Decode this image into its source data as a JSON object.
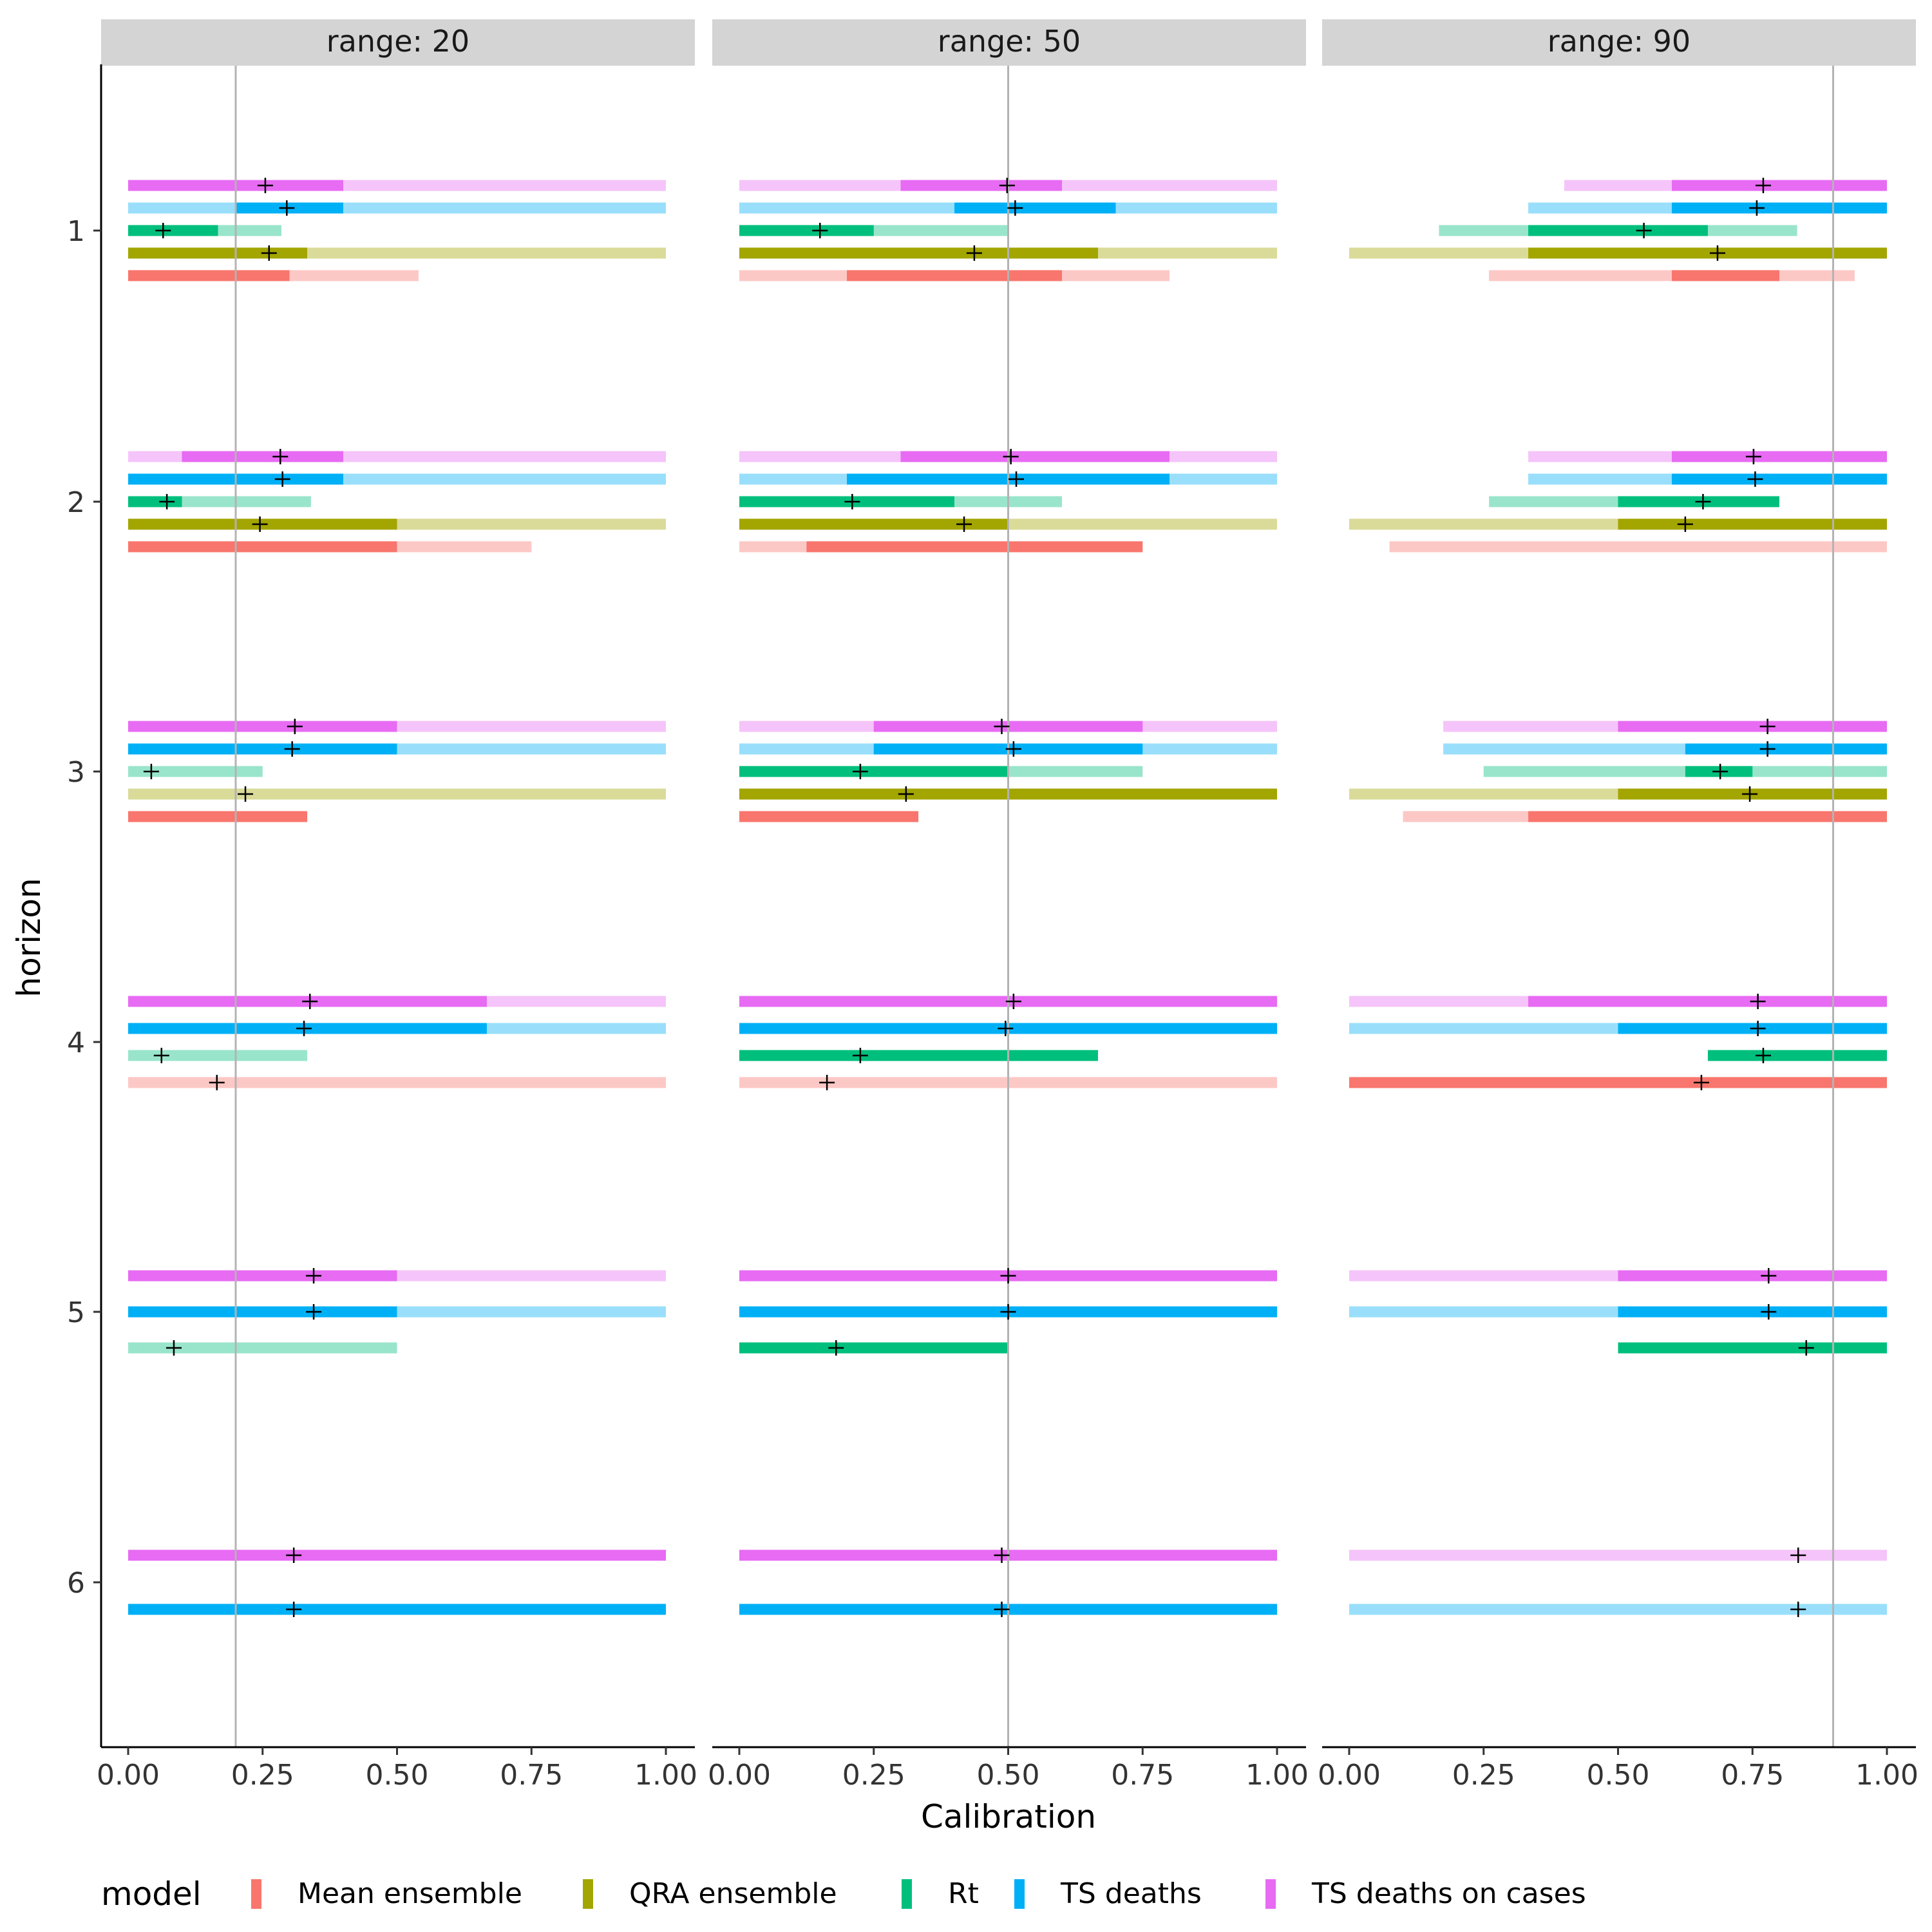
{
  "chart_data": {
    "type": "interval",
    "xlabel": "Calibration",
    "ylabel": "horizon",
    "xlim": [
      0,
      1
    ],
    "x_ticks": [
      "0.00",
      "0.25",
      "0.50",
      "0.75",
      "1.00"
    ],
    "y_ticks": [
      "1",
      "2",
      "3",
      "4",
      "5",
      "6"
    ],
    "grid": false,
    "legend": {
      "title": "model",
      "position": "bottom",
      "entries": [
        "Mean ensemble",
        "QRA ensemble",
        "Rt",
        "TS deaths",
        "TS deaths on cases"
      ]
    },
    "model_colors": {
      "Mean ensemble": "#F8766D",
      "QRA ensemble": "#A3A500",
      "Rt": "#00BF7D",
      "TS deaths": "#00B0F6",
      "TS deaths on cases": "#E76BF3"
    },
    "panels": [
      {
        "label": "range: 20",
        "target": 0.2,
        "rows": [
          {
            "horizon": 1,
            "model": "TS deaths on cases",
            "outer": [
              0,
              1
            ],
            "inner": [
              0,
              0.4
            ],
            "point": 0.255
          },
          {
            "horizon": 1,
            "model": "TS deaths",
            "outer": [
              0,
              1
            ],
            "inner": [
              0.2,
              0.4
            ],
            "point": 0.295
          },
          {
            "horizon": 1,
            "model": "Rt",
            "outer": [
              0,
              0.285
            ],
            "inner": [
              0,
              0.167
            ],
            "point": 0.065
          },
          {
            "horizon": 1,
            "model": "QRA ensemble",
            "outer": [
              0,
              1
            ],
            "inner": [
              0,
              0.333
            ],
            "point": 0.262
          },
          {
            "horizon": 1,
            "model": "Mean ensemble",
            "outer": [
              0,
              0.54
            ],
            "inner": [
              0,
              0.3
            ],
            "point": null
          },
          {
            "horizon": 2,
            "model": "TS deaths on cases",
            "outer": [
              0,
              1
            ],
            "inner": [
              0.1,
              0.4
            ],
            "point": 0.283
          },
          {
            "horizon": 2,
            "model": "TS deaths",
            "outer": [
              0,
              1
            ],
            "inner": [
              0,
              0.4
            ],
            "point": 0.287
          },
          {
            "horizon": 2,
            "model": "Rt",
            "outer": [
              0,
              0.34
            ],
            "inner": [
              0,
              0.1
            ],
            "point": 0.072
          },
          {
            "horizon": 2,
            "model": "QRA ensemble",
            "outer": [
              0,
              1
            ],
            "inner": [
              0,
              0.5
            ],
            "point": 0.245
          },
          {
            "horizon": 2,
            "model": "Mean ensemble",
            "outer": [
              0,
              0.75
            ],
            "inner": [
              0,
              0.5
            ],
            "point": null
          },
          {
            "horizon": 3,
            "model": "TS deaths on cases",
            "outer": [
              0,
              1
            ],
            "inner": [
              0,
              0.5
            ],
            "point": 0.31
          },
          {
            "horizon": 3,
            "model": "TS deaths",
            "outer": [
              0,
              1
            ],
            "inner": [
              0,
              0.5
            ],
            "point": 0.305
          },
          {
            "horizon": 3,
            "model": "Rt",
            "outer": [
              0,
              0.25
            ],
            "inner": null,
            "point": 0.043
          },
          {
            "horizon": 3,
            "model": "QRA ensemble",
            "outer": [
              0,
              1
            ],
            "inner": null,
            "point": 0.218
          },
          {
            "horizon": 3,
            "model": "Mean ensemble",
            "outer": [
              0,
              0.333
            ],
            "inner": [
              0,
              0.333
            ],
            "point": null
          },
          {
            "horizon": 4,
            "model": "TS deaths on cases",
            "outer": [
              0,
              1
            ],
            "inner": [
              0,
              0.667
            ],
            "point": 0.338
          },
          {
            "horizon": 4,
            "model": "TS deaths",
            "outer": [
              0,
              1
            ],
            "inner": [
              0,
              0.667
            ],
            "point": 0.327
          },
          {
            "horizon": 4,
            "model": "Rt",
            "outer": [
              0,
              0.333
            ],
            "inner": null,
            "point": 0.062
          },
          {
            "horizon": 4,
            "model": "Mean ensemble",
            "outer": [
              0,
              1
            ],
            "inner": null,
            "point": 0.165
          },
          {
            "horizon": 5,
            "model": "TS deaths on cases",
            "outer": [
              0,
              1
            ],
            "inner": [
              0,
              0.5
            ],
            "point": 0.345
          },
          {
            "horizon": 5,
            "model": "TS deaths",
            "outer": [
              0,
              1
            ],
            "inner": [
              0,
              0.5
            ],
            "point": 0.345
          },
          {
            "horizon": 5,
            "model": "Rt",
            "outer": [
              0,
              0.5
            ],
            "inner": null,
            "point": 0.085
          },
          {
            "horizon": 6,
            "model": "TS deaths on cases",
            "outer": [
              0,
              1
            ],
            "inner": [
              0,
              1
            ],
            "point": 0.308
          },
          {
            "horizon": 6,
            "model": "TS deaths",
            "outer": [
              0,
              1
            ],
            "inner": [
              0,
              1
            ],
            "point": 0.308
          }
        ]
      },
      {
        "label": "range: 50",
        "target": 0.5,
        "rows": [
          {
            "horizon": 1,
            "model": "TS deaths on cases",
            "outer": [
              0,
              1
            ],
            "inner": [
              0.3,
              0.6
            ],
            "point": 0.498
          },
          {
            "horizon": 1,
            "model": "TS deaths",
            "outer": [
              0,
              1
            ],
            "inner": [
              0.4,
              0.7
            ],
            "point": 0.513
          },
          {
            "horizon": 1,
            "model": "Rt",
            "outer": [
              0,
              0.5
            ],
            "inner": [
              0,
              0.25
            ],
            "point": 0.15
          },
          {
            "horizon": 1,
            "model": "QRA ensemble",
            "outer": [
              0,
              1
            ],
            "inner": [
              0,
              0.667
            ],
            "point": 0.437
          },
          {
            "horizon": 1,
            "model": "Mean ensemble",
            "outer": [
              0,
              0.8
            ],
            "inner": [
              0.2,
              0.6
            ],
            "point": null
          },
          {
            "horizon": 2,
            "model": "TS deaths on cases",
            "outer": [
              0,
              1
            ],
            "inner": [
              0.3,
              0.8
            ],
            "point": 0.505
          },
          {
            "horizon": 2,
            "model": "TS deaths",
            "outer": [
              0,
              1
            ],
            "inner": [
              0.2,
              0.8
            ],
            "point": 0.515
          },
          {
            "horizon": 2,
            "model": "Rt",
            "outer": [
              0,
              0.6
            ],
            "inner": [
              0,
              0.4
            ],
            "point": 0.21
          },
          {
            "horizon": 2,
            "model": "QRA ensemble",
            "outer": [
              0,
              1
            ],
            "inner": [
              0,
              0.5
            ],
            "point": 0.418
          },
          {
            "horizon": 2,
            "model": "Mean ensemble",
            "outer": [
              0,
              0.75
            ],
            "inner": [
              0.125,
              0.75
            ],
            "point": null
          },
          {
            "horizon": 3,
            "model": "TS deaths on cases",
            "outer": [
              0,
              1
            ],
            "inner": [
              0.25,
              0.75
            ],
            "point": 0.488
          },
          {
            "horizon": 3,
            "model": "TS deaths",
            "outer": [
              0,
              1
            ],
            "inner": [
              0.25,
              0.75
            ],
            "point": 0.51
          },
          {
            "horizon": 3,
            "model": "Rt",
            "outer": [
              0,
              0.75
            ],
            "inner": [
              0,
              0.5
            ],
            "point": 0.225
          },
          {
            "horizon": 3,
            "model": "QRA ensemble",
            "outer": [
              0,
              1
            ],
            "inner": [
              0,
              1
            ],
            "point": 0.31
          },
          {
            "horizon": 3,
            "model": "Mean ensemble",
            "outer": [
              0,
              0.333
            ],
            "inner": [
              0,
              0.333
            ],
            "point": null
          },
          {
            "horizon": 4,
            "model": "TS deaths on cases",
            "outer": [
              0,
              1
            ],
            "inner": [
              0,
              1
            ],
            "point": 0.51
          },
          {
            "horizon": 4,
            "model": "TS deaths",
            "outer": [
              0,
              1
            ],
            "inner": [
              0,
              1
            ],
            "point": 0.495
          },
          {
            "horizon": 4,
            "model": "Rt",
            "outer": [
              0,
              0.667
            ],
            "inner": [
              0,
              0.667
            ],
            "point": 0.225
          },
          {
            "horizon": 4,
            "model": "Mean ensemble",
            "outer": [
              0,
              1
            ],
            "inner": null,
            "point": 0.163
          },
          {
            "horizon": 5,
            "model": "TS deaths on cases",
            "outer": [
              0,
              1
            ],
            "inner": [
              0,
              1
            ],
            "point": 0.5
          },
          {
            "horizon": 5,
            "model": "TS deaths",
            "outer": [
              0,
              1
            ],
            "inner": [
              0,
              1
            ],
            "point": 0.5
          },
          {
            "horizon": 5,
            "model": "Rt",
            "outer": [
              0,
              0.5
            ],
            "inner": [
              0,
              0.5
            ],
            "point": 0.18
          },
          {
            "horizon": 6,
            "model": "TS deaths on cases",
            "outer": [
              0,
              1
            ],
            "inner": [
              0,
              1
            ],
            "point": 0.488
          },
          {
            "horizon": 6,
            "model": "TS deaths",
            "outer": [
              0,
              1
            ],
            "inner": [
              0,
              1
            ],
            "point": 0.488
          }
        ]
      },
      {
        "label": "range: 90",
        "target": 0.9,
        "rows": [
          {
            "horizon": 1,
            "model": "TS deaths on cases",
            "outer": [
              0.4,
              1
            ],
            "inner": [
              0.6,
              1
            ],
            "point": 0.77
          },
          {
            "horizon": 1,
            "model": "TS deaths",
            "outer": [
              0.333,
              1
            ],
            "inner": [
              0.6,
              1
            ],
            "point": 0.758
          },
          {
            "horizon": 1,
            "model": "Rt",
            "outer": [
              0.167,
              0.833
            ],
            "inner": [
              0.333,
              0.667
            ],
            "point": 0.548
          },
          {
            "horizon": 1,
            "model": "QRA ensemble",
            "outer": [
              0,
              1
            ],
            "inner": [
              0.333,
              1
            ],
            "point": 0.685
          },
          {
            "horizon": 1,
            "model": "Mean ensemble",
            "outer": [
              0.26,
              0.94
            ],
            "inner": [
              0.6,
              0.8
            ],
            "point": null
          },
          {
            "horizon": 2,
            "model": "TS deaths on cases",
            "outer": [
              0.333,
              1
            ],
            "inner": [
              0.6,
              1
            ],
            "point": 0.752
          },
          {
            "horizon": 2,
            "model": "TS deaths",
            "outer": [
              0.333,
              1
            ],
            "inner": [
              0.6,
              1
            ],
            "point": 0.755
          },
          {
            "horizon": 2,
            "model": "Rt",
            "outer": [
              0.26,
              0.8
            ],
            "inner": [
              0.5,
              0.8
            ],
            "point": 0.658
          },
          {
            "horizon": 2,
            "model": "QRA ensemble",
            "outer": [
              0,
              1
            ],
            "inner": [
              0.5,
              1
            ],
            "point": 0.625
          },
          {
            "horizon": 2,
            "model": "Mean ensemble",
            "outer": [
              0.075,
              1
            ],
            "inner": null,
            "point": null
          },
          {
            "horizon": 3,
            "model": "TS deaths on cases",
            "outer": [
              0.175,
              1
            ],
            "inner": [
              0.5,
              1
            ],
            "point": 0.778
          },
          {
            "horizon": 3,
            "model": "TS deaths",
            "outer": [
              0.175,
              1
            ],
            "inner": [
              0.625,
              1
            ],
            "point": 0.778
          },
          {
            "horizon": 3,
            "model": "Rt",
            "outer": [
              0.25,
              1
            ],
            "inner": [
              0.625,
              0.75
            ],
            "point": 0.69
          },
          {
            "horizon": 3,
            "model": "QRA ensemble",
            "outer": [
              0,
              1
            ],
            "inner": [
              0.5,
              1
            ],
            "point": 0.745
          },
          {
            "horizon": 3,
            "model": "Mean ensemble",
            "outer": [
              0.1,
              1
            ],
            "inner": [
              0.333,
              1
            ],
            "point": null
          },
          {
            "horizon": 4,
            "model": "TS deaths on cases",
            "outer": [
              0,
              1
            ],
            "inner": [
              0.333,
              1
            ],
            "point": 0.76
          },
          {
            "horizon": 4,
            "model": "TS deaths",
            "outer": [
              0,
              1
            ],
            "inner": [
              0.5,
              1
            ],
            "point": 0.76
          },
          {
            "horizon": 4,
            "model": "Rt",
            "outer": [
              0.667,
              1
            ],
            "inner": [
              0.667,
              1
            ],
            "point": 0.77
          },
          {
            "horizon": 4,
            "model": "Mean ensemble",
            "outer": [
              0,
              1
            ],
            "inner": [
              0,
              1
            ],
            "point": 0.655
          },
          {
            "horizon": 5,
            "model": "TS deaths on cases",
            "outer": [
              0,
              1
            ],
            "inner": [
              0.5,
              1
            ],
            "point": 0.78
          },
          {
            "horizon": 5,
            "model": "TS deaths",
            "outer": [
              0,
              1
            ],
            "inner": [
              0.5,
              1
            ],
            "point": 0.78
          },
          {
            "horizon": 5,
            "model": "Rt",
            "outer": [
              0.5,
              1
            ],
            "inner": [
              0.5,
              1
            ],
            "point": 0.85
          },
          {
            "horizon": 6,
            "model": "TS deaths on cases",
            "outer": [
              0,
              1
            ],
            "inner": null,
            "point": 0.835
          },
          {
            "horizon": 6,
            "model": "TS deaths",
            "outer": [
              0,
              1
            ],
            "inner": null,
            "point": 0.835
          }
        ]
      }
    ]
  }
}
